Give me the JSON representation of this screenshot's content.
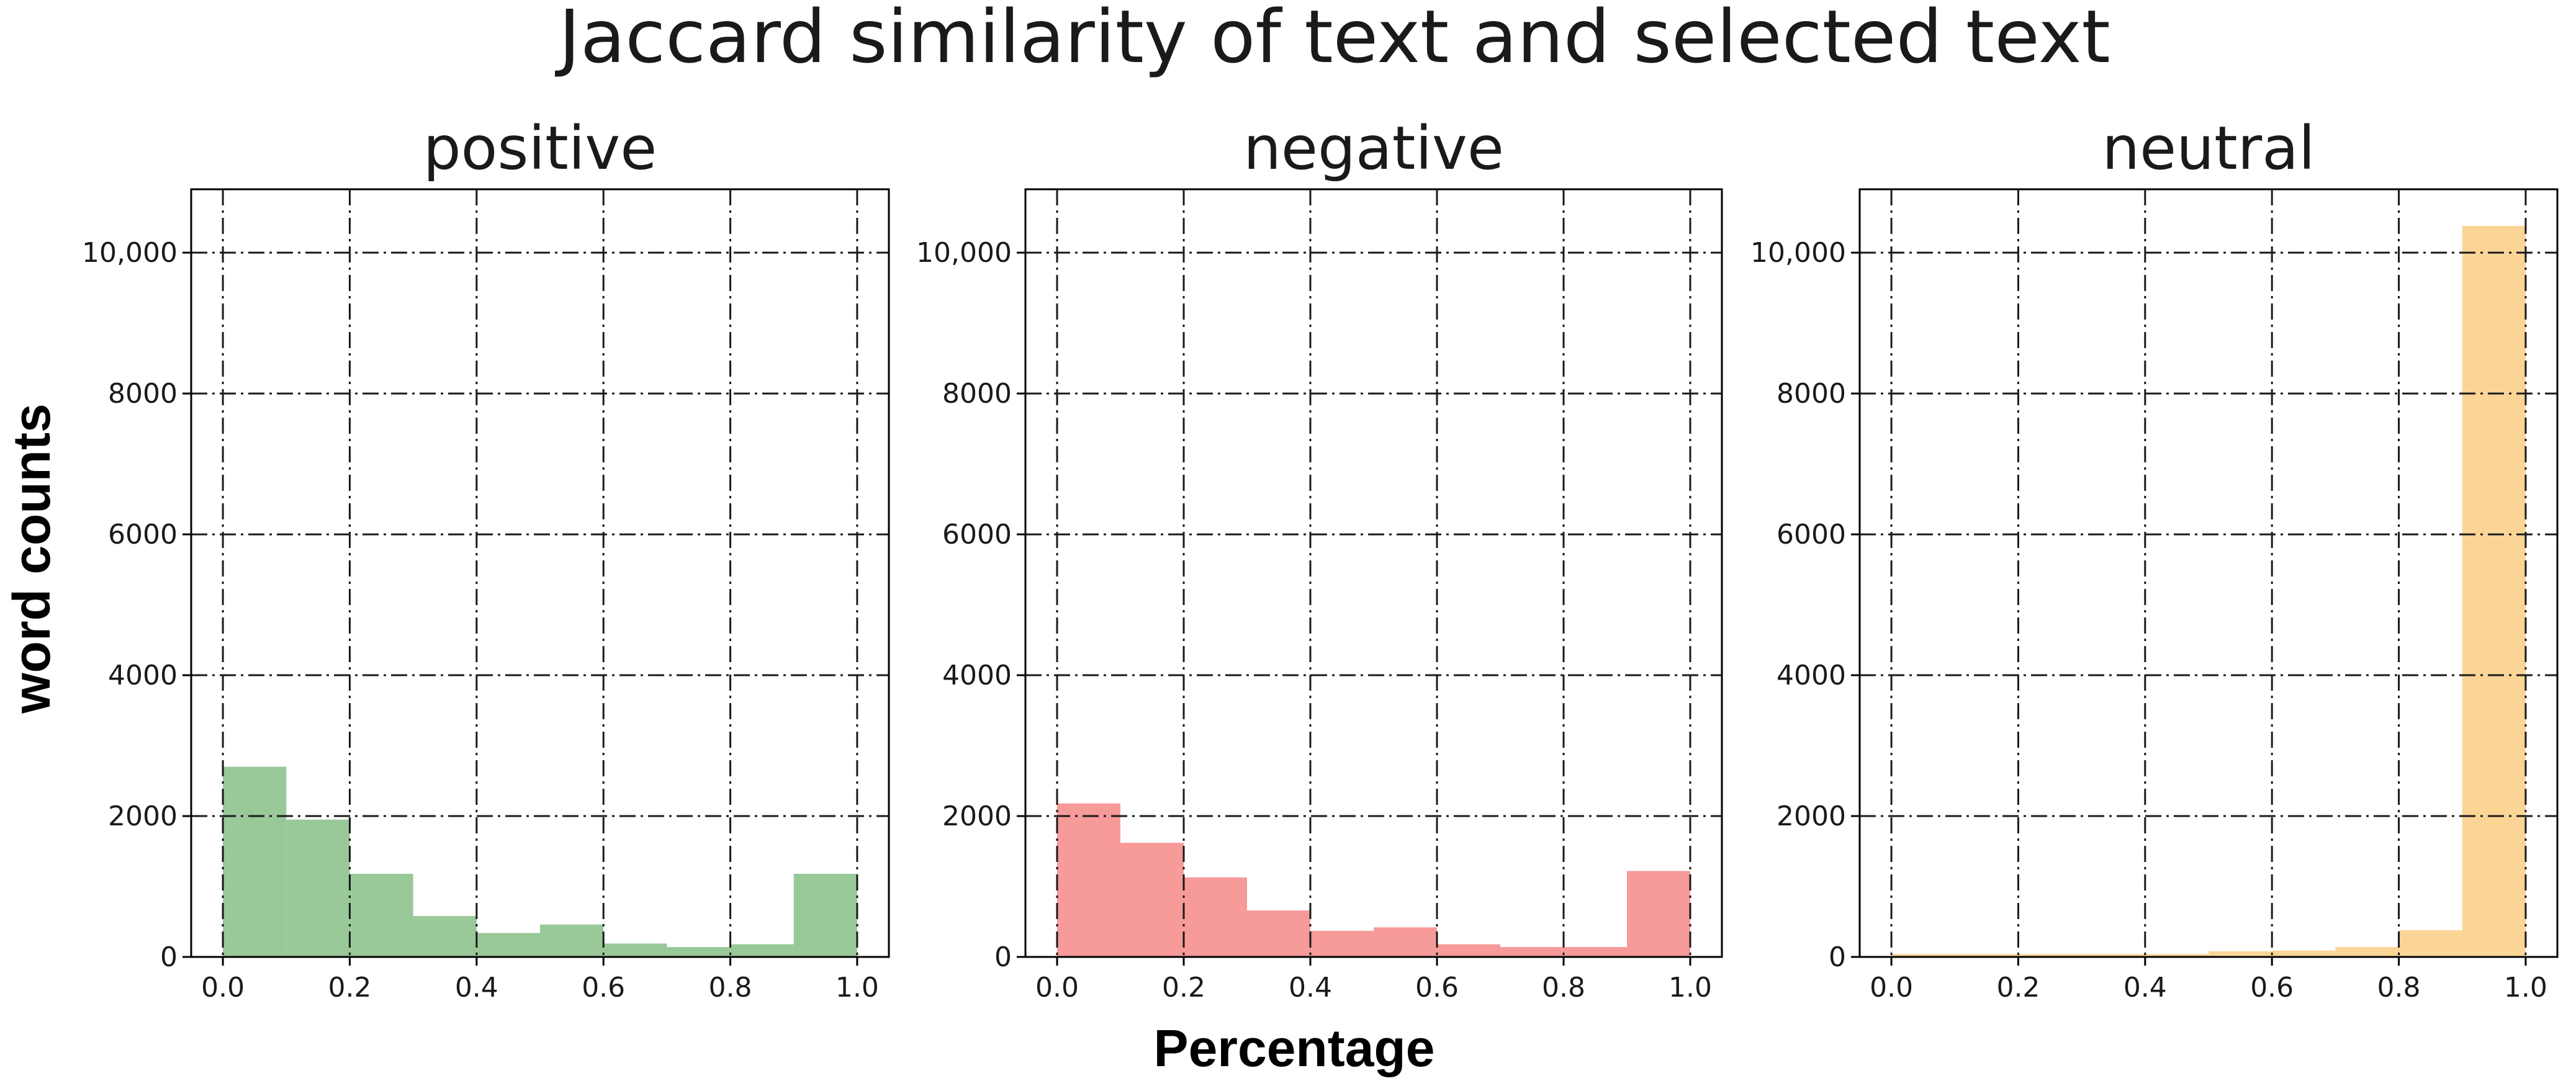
{
  "chart_data": {
    "type": "bar",
    "title": "Jaccard similarity of text and selected text",
    "xlabel": "Percentage",
    "ylabel": "word counts",
    "bins": [
      0.0,
      0.1,
      0.2,
      0.3,
      0.4,
      0.5,
      0.6,
      0.7,
      0.8,
      0.9,
      1.0
    ],
    "xlim": [
      -0.05,
      1.05
    ],
    "ylim": [
      0,
      10900
    ],
    "x_ticks": [
      "0.0",
      "0.2",
      "0.4",
      "0.6",
      "0.8",
      "1.0"
    ],
    "y_ticks": [
      "0",
      "2000",
      "4000",
      "6000",
      "8000",
      "10,000"
    ],
    "grid": true,
    "panels": [
      {
        "title": "positive",
        "color": "#99c899",
        "values": [
          2700,
          1950,
          1180,
          580,
          340,
          460,
          190,
          140,
          180,
          1180
        ]
      },
      {
        "title": "negative",
        "color": "#f79a9a",
        "values": [
          2180,
          1620,
          1130,
          660,
          370,
          420,
          180,
          140,
          140,
          1220
        ]
      },
      {
        "title": "neutral",
        "color": "#fbd596",
        "values": [
          40,
          40,
          40,
          40,
          40,
          80,
          90,
          140,
          380,
          10380
        ]
      }
    ]
  }
}
